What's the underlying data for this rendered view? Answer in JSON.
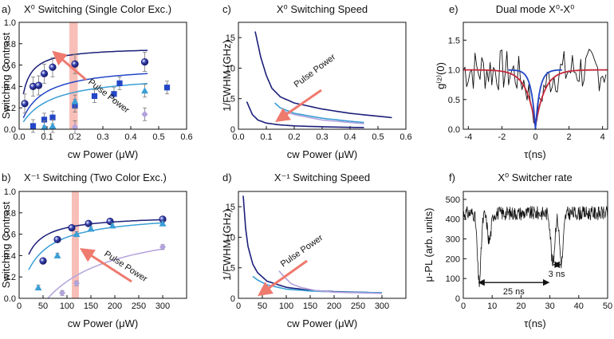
{
  "colors": {
    "navy": "#1c1f7a",
    "blue": "#2346c8",
    "cyan": "#3a9fd6",
    "lavender": "#b3a3dc",
    "red": "#c4273a",
    "black": "#111111",
    "highlight": "#f4a9a0",
    "arrow": "#ef7a6e"
  },
  "chart_data": [
    {
      "type": "scatter",
      "panel_label": "a)",
      "title": "X⁰ Switching (Single Color Exc.)",
      "xlabel": "cw Power (μW)",
      "ylabel": "Switching Contrast",
      "xlim": [
        0,
        0.6
      ],
      "ylim": [
        0,
        1.0
      ],
      "xticks": [
        "0.0",
        "0.1",
        "0.2",
        "0.3",
        "0.4",
        "0.5",
        "0.6"
      ],
      "yticks": [
        "0.0",
        "0.2",
        "0.4",
        "0.6",
        "0.8",
        "1.0"
      ],
      "highlight_x": [
        0.18,
        0.21
      ],
      "annotation": "Pulse Power",
      "series": [
        {
          "color": "navy",
          "marker": "circle",
          "x": [
            0.02,
            0.05,
            0.07,
            0.09,
            0.12,
            0.2,
            0.45
          ],
          "y": [
            0.24,
            0.4,
            0.41,
            0.52,
            0.58,
            0.61,
            0.63
          ]
        },
        {
          "color": "blue",
          "marker": "square",
          "x": [
            0.05,
            0.09,
            0.12,
            0.2,
            0.27,
            0.34,
            0.36,
            0.53
          ],
          "y": [
            0.03,
            0.09,
            0.11,
            0.22,
            0.31,
            0.33,
            0.43,
            0.39
          ]
        },
        {
          "color": "cyan",
          "marker": "triangle",
          "x": [
            0.09,
            0.12,
            0.2,
            0.45
          ],
          "y": [
            0.02,
            0.03,
            0.26,
            0.36
          ]
        },
        {
          "color": "lavender",
          "marker": "diamond",
          "x": [
            0.2,
            0.45
          ],
          "y": [
            0.02,
            0.14
          ]
        }
      ],
      "fits": [
        {
          "color": "navy",
          "a": 0.77,
          "b": 0.02
        },
        {
          "color": "blue",
          "a": 0.6,
          "b": 0.07
        },
        {
          "color": "cyan",
          "a": 0.52,
          "b": 0.1
        }
      ]
    },
    {
      "type": "line",
      "panel_label": "c)",
      "title": "X⁰ Switching Speed",
      "xlabel": "cw Power (μW)",
      "ylabel": "1/FWHM (GHz)",
      "xlim": [
        0,
        0.6
      ],
      "ylim": [
        0,
        17.5
      ],
      "xticks": [
        "0.0",
        "0.1",
        "0.2",
        "0.3",
        "0.4",
        "0.5",
        "0.6"
      ],
      "yticks": [
        "0",
        "5",
        "10",
        "15"
      ],
      "annotation": "Pulse Power",
      "series": [
        {
          "color": "navy",
          "x": [
            0.06,
            0.08,
            0.1,
            0.12,
            0.15,
            0.2,
            0.3,
            0.4,
            0.55
          ],
          "y": [
            16,
            11.8,
            8.8,
            6.7,
            5.3,
            4.3,
            3.3,
            2.6,
            1.9
          ]
        },
        {
          "color": "cyan",
          "x": [
            0.13,
            0.15,
            0.2,
            0.3,
            0.4,
            0.45
          ],
          "y": [
            4.3,
            3.5,
            2.6,
            1.8,
            1.3,
            1.1
          ]
        },
        {
          "color": "lavender",
          "x": [
            0.16,
            0.2,
            0.3,
            0.45
          ],
          "y": [
            3.0,
            2.4,
            1.5,
            0.9
          ]
        },
        {
          "color": "navy",
          "x": [
            0.03,
            0.05,
            0.07,
            0.1,
            0.15,
            0.2,
            0.3,
            0.4,
            0.45
          ],
          "y": [
            4.5,
            2.4,
            1.5,
            1.0,
            0.7,
            0.55,
            0.4,
            0.3,
            0.28
          ]
        }
      ]
    },
    {
      "type": "line",
      "panel_label": "e)",
      "title": "Dual mode X⁰-X⁰",
      "xlabel": "τ(ns)",
      "ylabel": "g⁽²⁾(0)",
      "xlim": [
        -4.3,
        4.3
      ],
      "ylim": [
        0,
        1.8
      ],
      "xticks": [
        "-4",
        "-2",
        "0",
        "2",
        "4"
      ],
      "yticks": [
        "0.0",
        "0.5",
        "1.0",
        "1.5"
      ],
      "series": [
        {
          "color": "red",
          "function": "1 - 0.95*exp(-|x|/0.55)"
        },
        {
          "color": "blue",
          "function": "1 - 1.0*exp(-|x|/0.25)"
        },
        {
          "color": "black",
          "note": "measured coincidences"
        }
      ]
    },
    {
      "type": "scatter",
      "panel_label": "b)",
      "title": "X⁻¹ Switching (Two Color Exc.)",
      "xlabel": "cw Power (μW)",
      "ylabel": "Switching Contrast",
      "xlim": [
        0,
        350
      ],
      "ylim": [
        0,
        1.0
      ],
      "xticks": [
        "0",
        "50",
        "100",
        "150",
        "200",
        "250",
        "300"
      ],
      "yticks": [
        "0.0",
        "0.2",
        "0.4",
        "0.6",
        "0.8",
        "1.0"
      ],
      "highlight_x": [
        110,
        125
      ],
      "annotation": "Pulse Power",
      "series": [
        {
          "color": "navy",
          "marker": "circle",
          "x": [
            50,
            80,
            110,
            145,
            190,
            300
          ],
          "y": [
            0.35,
            0.55,
            0.66,
            0.7,
            0.72,
            0.74
          ]
        },
        {
          "color": "cyan",
          "marker": "triangle",
          "x": [
            40,
            80,
            120,
            150,
            195,
            300
          ],
          "y": [
            0.1,
            0.4,
            0.6,
            0.65,
            0.68,
            0.7
          ]
        },
        {
          "color": "lavender",
          "marker": "diamond",
          "x": [
            90,
            120,
            300
          ],
          "y": [
            0.05,
            0.14,
            0.48
          ]
        }
      ],
      "fits": [
        {
          "color": "navy",
          "a": 0.78,
          "b": 18
        },
        {
          "color": "cyan",
          "a": 0.8,
          "b": 40
        },
        {
          "color": "lavender",
          "a": 0.75,
          "b": 150,
          "x0": 60
        }
      ]
    },
    {
      "type": "line",
      "panel_label": "d)",
      "title": "X⁻¹ Switching Speed",
      "xlabel": "cw Power (μW)",
      "ylabel": "1/FWHM (GHz)",
      "xlim": [
        0,
        350
      ],
      "ylim": [
        0,
        17.5
      ],
      "xticks": [
        "0",
        "50",
        "100",
        "150",
        "200",
        "250",
        "300"
      ],
      "yticks": [
        "0",
        "5",
        "10",
        "15"
      ],
      "annotation": "Pulse Power",
      "series": [
        {
          "color": "navy",
          "x": [
            10,
            15,
            20,
            30,
            40,
            60,
            100,
            150,
            200,
            300
          ],
          "y": [
            16.8,
            11.5,
            8.5,
            5.6,
            4.2,
            2.8,
            1.8,
            1.3,
            1.1,
            0.9
          ]
        },
        {
          "color": "cyan",
          "x": [
            30,
            40,
            60,
            100,
            150,
            200,
            300
          ],
          "y": [
            3.6,
            3.0,
            2.2,
            1.5,
            1.2,
            1.05,
            0.9
          ]
        },
        {
          "color": "lavender",
          "x": [
            85,
            90,
            100,
            110,
            130,
            160,
            200,
            300
          ],
          "y": [
            4.5,
            4.0,
            3.2,
            2.4,
            1.8,
            1.3,
            1.0,
            0.8
          ]
        }
      ]
    },
    {
      "type": "line",
      "panel_label": "f)",
      "title": "X⁰ Switcher rate",
      "xlabel": "τ(ns)",
      "ylabel": "μ-PL (arb. units)",
      "xlim": [
        0,
        50
      ],
      "ylim": [
        0,
        540
      ],
      "xticks": [
        "0",
        "10",
        "20",
        "30",
        "40",
        "50"
      ],
      "yticks": [
        "0",
        "100",
        "200",
        "300",
        "400",
        "500"
      ],
      "annotations": [
        {
          "text": "25 ns",
          "x_from": 5,
          "x_to": 30,
          "y": 80
        },
        {
          "text": "3 ns",
          "x_from": 31,
          "x_to": 34,
          "y": 170
        }
      ],
      "series": [
        {
          "color": "black",
          "baseline": 430,
          "dips": [
            {
              "x": 5.5,
              "depth": 350
            },
            {
              "x": 9,
              "depth": 140
            },
            {
              "x": 31,
              "depth": 260
            },
            {
              "x": 34,
              "depth": 250
            }
          ]
        }
      ]
    }
  ]
}
